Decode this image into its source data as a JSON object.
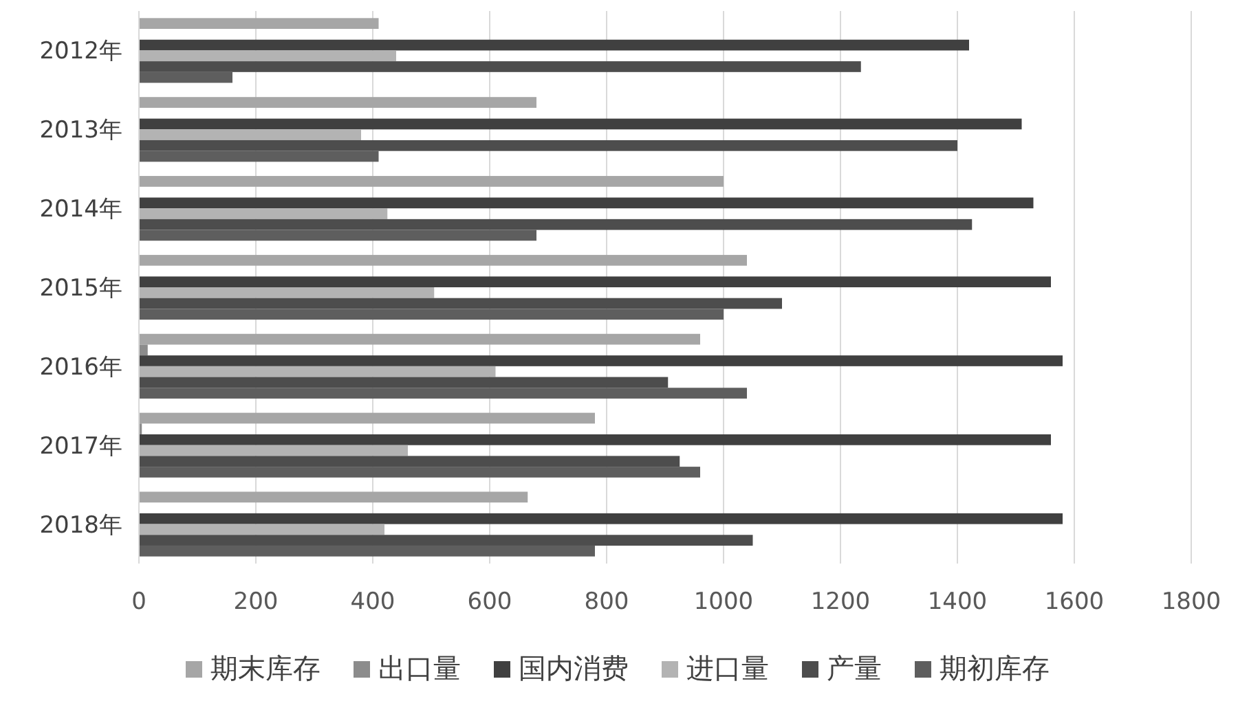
{
  "chart_data": {
    "type": "bar",
    "orientation": "horizontal",
    "categories": [
      "2012年",
      "2013年",
      "2014年",
      "2015年",
      "2016年",
      "2017年",
      "2018年"
    ],
    "series": [
      {
        "name": "期末库存",
        "color": "#a6a6a6",
        "values": [
          410,
          680,
          1000,
          1040,
          960,
          780,
          665
        ]
      },
      {
        "name": "出口量",
        "color": "#8c8c8c",
        "values": [
          0,
          0,
          0,
          0,
          15,
          5,
          0
        ]
      },
      {
        "name": "国内消费",
        "color": "#404040",
        "values": [
          1420,
          1510,
          1530,
          1560,
          1580,
          1560,
          1580
        ]
      },
      {
        "name": "进口量",
        "color": "#b3b3b3",
        "values": [
          440,
          380,
          425,
          505,
          610,
          460,
          420
        ]
      },
      {
        "name": "产量",
        "color": "#4d4d4d",
        "values": [
          1235,
          1400,
          1425,
          1100,
          905,
          925,
          1050
        ]
      },
      {
        "name": "期初库存",
        "color": "#5e5e5e",
        "values": [
          160,
          410,
          680,
          1000,
          1040,
          960,
          780
        ]
      }
    ],
    "xlim": [
      0,
      1800
    ],
    "xticks": [
      0,
      200,
      400,
      600,
      800,
      1000,
      1200,
      1400,
      1600,
      1800
    ],
    "grid": "x",
    "legend": "bottom"
  }
}
